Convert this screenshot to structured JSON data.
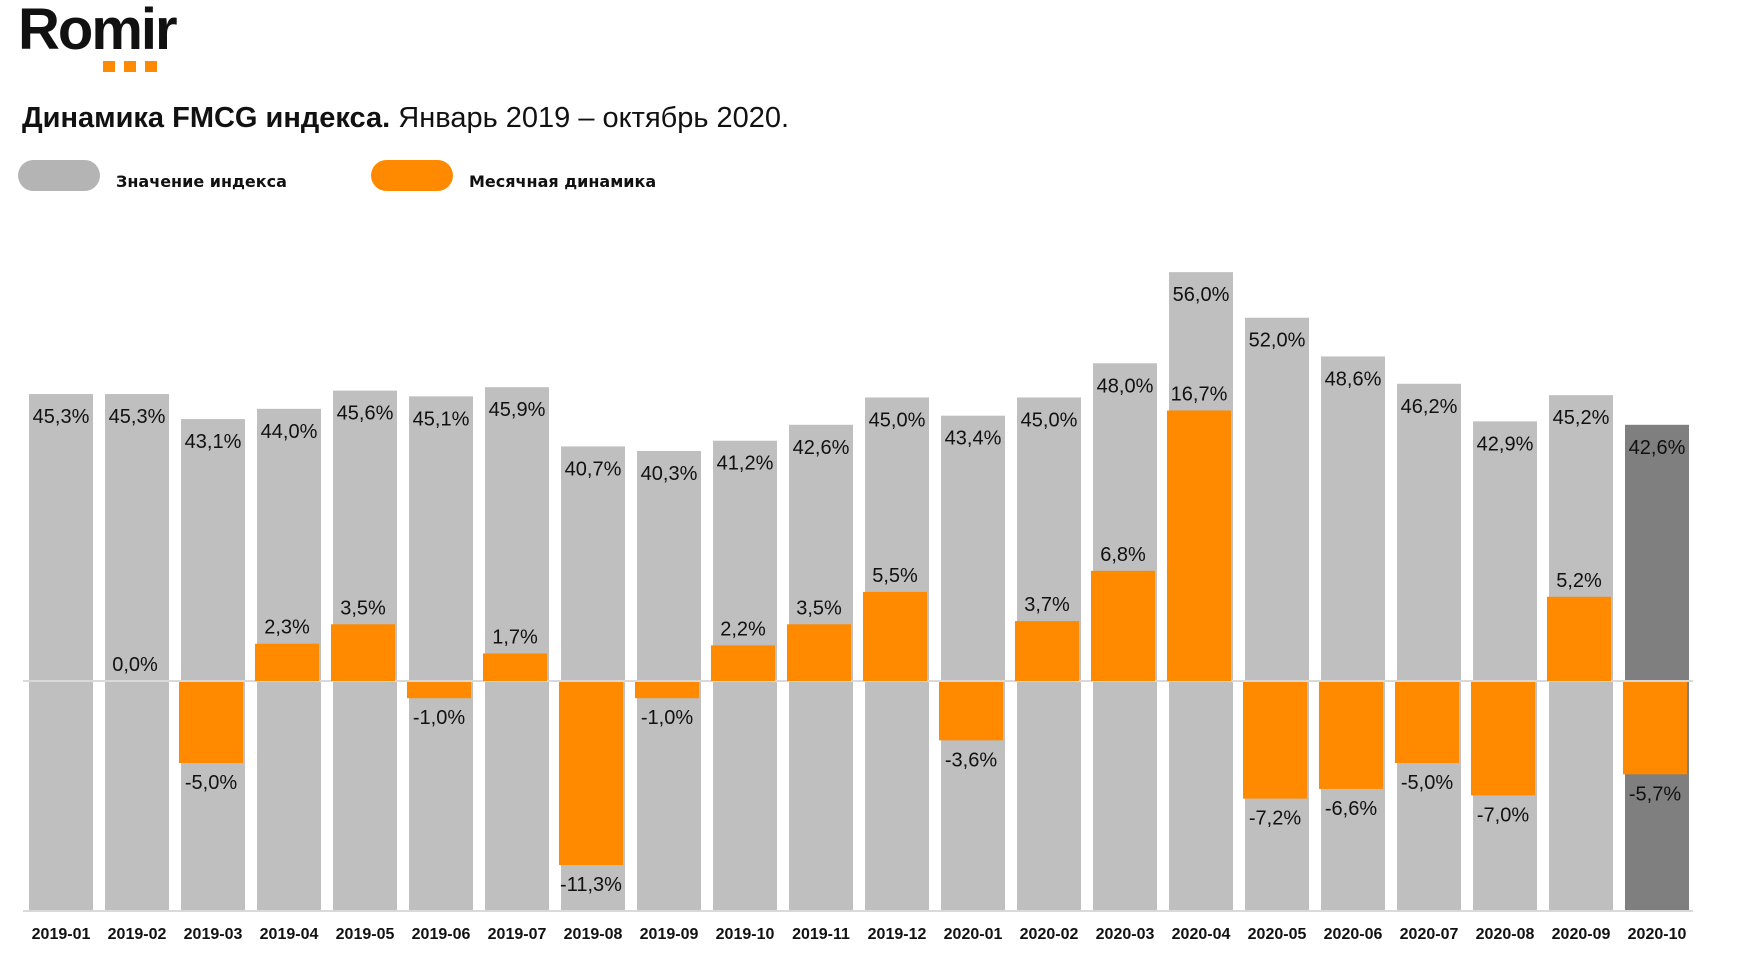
{
  "logo": {
    "text": "Romir",
    "accent": "#ff8a00"
  },
  "title": {
    "bold": "Динамика FMCG индекса.",
    "normal": "Январь 2019 – октябрь 2020."
  },
  "legend": [
    {
      "label": "Значение индекса",
      "color": "#b4b4b4"
    },
    {
      "label": "Месячная динамика",
      "color": "#ff8a00"
    }
  ],
  "chart_data": {
    "type": "bar",
    "title": "Динамика FMCG индекса. Январь 2019 – октябрь 2020.",
    "xlabel": "",
    "ylabel": "",
    "legend_position": "top-left",
    "grid": false,
    "categories": [
      "2019-01",
      "2019-02",
      "2019-03",
      "2019-04",
      "2019-05",
      "2019-06",
      "2019-07",
      "2019-08",
      "2019-09",
      "2019-10",
      "2019-11",
      "2019-12",
      "2020-01",
      "2020-02",
      "2020-03",
      "2020-04",
      "2020-05",
      "2020-06",
      "2020-07",
      "2020-08",
      "2020-09",
      "2020-10"
    ],
    "series": [
      {
        "name": "Значение индекса",
        "color": "#bfbfbf",
        "highlight_last_color": "#7f7f7f",
        "values": [
          45.3,
          45.3,
          43.1,
          44.0,
          45.6,
          45.1,
          45.9,
          40.7,
          40.3,
          41.2,
          42.6,
          45.0,
          43.4,
          45.0,
          48.0,
          56.0,
          52.0,
          48.6,
          46.2,
          42.9,
          45.2,
          42.6
        ],
        "labels": [
          "45,3%",
          "45,3%",
          "43,1%",
          "44,0%",
          "45,6%",
          "45,1%",
          "45,9%",
          "40,7%",
          "40,3%",
          "41,2%",
          "42,6%",
          "45,0%",
          "43,4%",
          "45,0%",
          "48,0%",
          "56,0%",
          "52,0%",
          "48,6%",
          "46,2%",
          "42,9%",
          "45,2%",
          "42,6%"
        ]
      },
      {
        "name": "Месячная динамика",
        "color": "#ff8a00",
        "values": [
          null,
          0.0,
          -5.0,
          2.3,
          3.5,
          -1.0,
          1.7,
          -11.3,
          -1.0,
          2.2,
          3.5,
          5.5,
          -3.6,
          3.7,
          6.8,
          16.7,
          -7.2,
          -6.6,
          -5.0,
          -7.0,
          5.2,
          -5.7
        ],
        "labels": [
          null,
          "0,0%",
          "-5,0%",
          "2,3%",
          "3,5%",
          "-1,0%",
          "1,7%",
          "-11,3%",
          "-1,0%",
          "2,2%",
          "3,5%",
          "5,5%",
          "-3,6%",
          "3,7%",
          "6,8%",
          "16,7%",
          "-7,2%",
          "-6,6%",
          "-5,0%",
          "-7,0%",
          "5,2%",
          "-5,7%"
        ]
      }
    ]
  }
}
